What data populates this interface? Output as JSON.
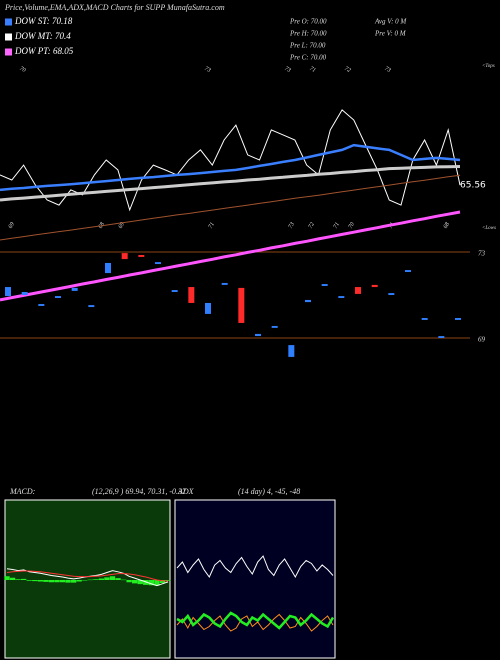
{
  "header": {
    "title": "Price,Volume,EMA,ADX,MACD Charts for SUPP MunafaSutra.com",
    "legend": [
      {
        "label": "DOW ST: 70.18",
        "color": "#3a7fff"
      },
      {
        "label": "DOW MT: 70.4",
        "color": "#ffffff"
      },
      {
        "label": "DOW PT: 68.05",
        "color": "#ff66ff"
      }
    ],
    "stats": [
      "Pre  O: 70.00",
      "Pre  H: 70.00",
      "Pre  L: 70.00",
      "Pre  C: 70.00",
      "Avg V: 0  M",
      "Pre  V: 0  M"
    ],
    "tops": {
      "label": "<Tops",
      "marks": [
        "70",
        "73",
        "73",
        "71",
        "72",
        "73"
      ]
    },
    "lows": {
      "label": "<Lows",
      "marks": [
        "69",
        "68",
        "69",
        "71",
        "73",
        "72",
        "71",
        "70",
        "71",
        "68"
      ]
    },
    "macd_label": "MACD:",
    "macd_params": "(12,26,9 ) 69.94, 70.31, -0.37",
    "adx_label": "ADX",
    "adx_params": "(14 day) 4, -45, -48"
  },
  "chart_data": [
    {
      "type": "line",
      "ylim": [
        62,
        71.5
      ],
      "series": [
        {
          "color": "#ffffff",
          "width": 1,
          "values": [
            66.04,
            65.8,
            66.51,
            65.56,
            64.85,
            64.61,
            65.33,
            65.09,
            66.04,
            66.75,
            66.28,
            64.38,
            65.8,
            66.51,
            66.28,
            66.04,
            66.75,
            67.23,
            66.51,
            67.7,
            68.41,
            66.99,
            66.75,
            68.18,
            67.94,
            67.7,
            66.51,
            66.04,
            68.18,
            69.13,
            68.65,
            67.46,
            66.28,
            64.85,
            64.61,
            66.75,
            67.7,
            66.51,
            68.18,
            65.56
          ]
        },
        {
          "color": "#3a7fff",
          "width": 2.5,
          "values": [
            65.33,
            65.38,
            65.42,
            65.47,
            65.52,
            65.56,
            65.6,
            65.65,
            65.7,
            65.75,
            65.8,
            65.85,
            65.9,
            65.94,
            65.99,
            66.04,
            66.08,
            66.13,
            66.18,
            66.23,
            66.28,
            66.37,
            66.47,
            66.56,
            66.66,
            66.75,
            66.87,
            66.99,
            67.11,
            67.23,
            67.46,
            67.38,
            67.3,
            67.23,
            66.99,
            66.75,
            66.8,
            66.85,
            66.8,
            66.75
          ]
        },
        {
          "color": "#cccccc",
          "width": 3,
          "values": [
            64.85,
            64.9,
            64.94,
            64.99,
            65.03,
            65.08,
            65.12,
            65.17,
            65.21,
            65.26,
            65.3,
            65.35,
            65.39,
            65.44,
            65.48,
            65.53,
            65.57,
            65.62,
            65.66,
            65.71,
            65.75,
            65.8,
            65.84,
            65.89,
            65.93,
            65.98,
            66.02,
            66.07,
            66.11,
            66.16,
            66.2,
            66.25,
            66.29,
            66.34,
            66.36,
            66.38,
            66.4,
            66.42,
            66.43,
            66.44
          ]
        },
        {
          "color": "#a0522d",
          "width": 1,
          "values": [
            62.95,
            63.03,
            63.11,
            63.19,
            63.27,
            63.35,
            63.42,
            63.5,
            63.58,
            63.66,
            63.74,
            63.82,
            63.9,
            63.98,
            64.06,
            64.14,
            64.21,
            64.29,
            64.37,
            64.45,
            64.53,
            64.61,
            64.69,
            64.77,
            64.85,
            64.93,
            65.0,
            65.08,
            65.16,
            65.24,
            65.32,
            65.4,
            65.48,
            65.56,
            65.64,
            65.72,
            65.79,
            65.87,
            65.95,
            66.03
          ]
        }
      ]
    },
    {
      "type": "candlestick",
      "ylim": [
        68,
        75
      ],
      "yticks": [
        73,
        69
      ],
      "grid": true,
      "grid_color": "#8b4513",
      "up_color": "#2f7fff",
      "down_color": "#ff2a2a",
      "open": [
        70.95,
        71.0,
        70.49,
        70.86,
        71.19,
        70.44,
        72.02,
        72.95,
        72.86,
        72.44,
        71.14,
        71.37,
        70.12,
        71.47,
        71.33,
        69.09,
        69.47,
        68.12,
        70.67,
        71.42,
        70.86,
        71.37,
        71.47,
        71.0,
        72.07,
        69.84,
        69.0,
        69.84
      ],
      "close": [
        71.37,
        71.14,
        70.58,
        70.95,
        71.33,
        70.53,
        72.49,
        72.67,
        72.77,
        72.53,
        71.23,
        70.63,
        70.63,
        71.56,
        69.7,
        69.19,
        69.56,
        68.67,
        70.77,
        71.51,
        70.95,
        71.05,
        71.37,
        71.09,
        72.16,
        69.93,
        69.09,
        69.93
      ],
      "series": [
        {
          "color": "#ff55ff",
          "width": 3,
          "values": [
            70.77,
            70.88,
            70.98,
            71.09,
            71.19,
            71.3,
            71.4,
            71.51,
            71.61,
            71.72,
            71.82,
            71.93,
            72.03,
            72.14,
            72.24,
            72.35,
            72.45,
            72.56,
            72.66,
            72.77,
            72.87,
            72.98,
            73.08,
            73.19,
            73.29,
            73.4,
            73.5,
            73.61,
            73.71,
            73.82,
            73.92,
            74.03,
            74.13,
            74.24,
            74.34,
            74.45,
            74.55,
            74.66,
            74.76,
            74.86
          ]
        }
      ]
    },
    {
      "type": "macd",
      "ylim": [
        -2,
        2
      ],
      "background": "#0a3a0a",
      "histogram": {
        "color": "#22ee22",
        "values": [
          0.1,
          0.06,
          0.02,
          0.03,
          -0.02,
          -0.03,
          -0.04,
          -0.05,
          -0.06,
          -0.06,
          -0.06,
          -0.07,
          -0.07,
          -0.04,
          -0.01,
          0.01,
          0.02,
          0.04,
          0.07,
          0.1,
          0.05,
          0.01,
          -0.06,
          -0.09,
          -0.11,
          -0.13,
          -0.14,
          -0.15,
          -0.08,
          -0.02
        ]
      },
      "series": [
        {
          "color": "#ffffff",
          "width": 1,
          "values": [
            0.3,
            0.28,
            0.25,
            0.27,
            0.22,
            0.2,
            0.18,
            0.15,
            0.12,
            0.1,
            0.08,
            0.05,
            0.03,
            0.05,
            0.08,
            0.1,
            0.12,
            0.15,
            0.2,
            0.25,
            0.22,
            0.18,
            0.1,
            0.05,
            0,
            -0.05,
            -0.1,
            -0.15,
            -0.1,
            -0.05
          ]
        },
        {
          "color": "#ff3333",
          "width": 1,
          "values": [
            0.2,
            0.22,
            0.23,
            0.24,
            0.24,
            0.23,
            0.22,
            0.2,
            0.18,
            0.16,
            0.14,
            0.12,
            0.1,
            0.09,
            0.09,
            0.09,
            0.1,
            0.11,
            0.13,
            0.15,
            0.17,
            0.17,
            0.16,
            0.14,
            0.11,
            0.08,
            0.04,
            0,
            -0.02,
            -0.03
          ]
        }
      ]
    },
    {
      "type": "line",
      "ylim": [
        0,
        100
      ],
      "background": "#000022",
      "series": [
        {
          "color": "#ffffff",
          "width": 1,
          "values": [
            58,
            62,
            55,
            60,
            64,
            57,
            52,
            60,
            63,
            58,
            55,
            61,
            65,
            59,
            54,
            62,
            66,
            57,
            53,
            60,
            64,
            58,
            52,
            59,
            63,
            61,
            56,
            60,
            57,
            53
          ]
        },
        {
          "color": "#ff8c1a",
          "width": 1,
          "values": [
            20,
            24,
            18,
            25,
            21,
            17,
            19,
            23,
            26,
            20,
            16,
            18,
            24,
            26,
            19,
            22,
            17,
            20,
            24,
            27,
            23,
            18,
            19,
            25,
            21,
            16,
            19,
            23,
            26,
            20
          ]
        },
        {
          "color": "#22ee22",
          "width": 2.5,
          "values": [
            24,
            22,
            26,
            20,
            23,
            27,
            25,
            21,
            19,
            24,
            28,
            26,
            22,
            20,
            25,
            23,
            27,
            24,
            21,
            18,
            22,
            26,
            25,
            20,
            23,
            27,
            24,
            21,
            19,
            25
          ]
        }
      ]
    }
  ]
}
